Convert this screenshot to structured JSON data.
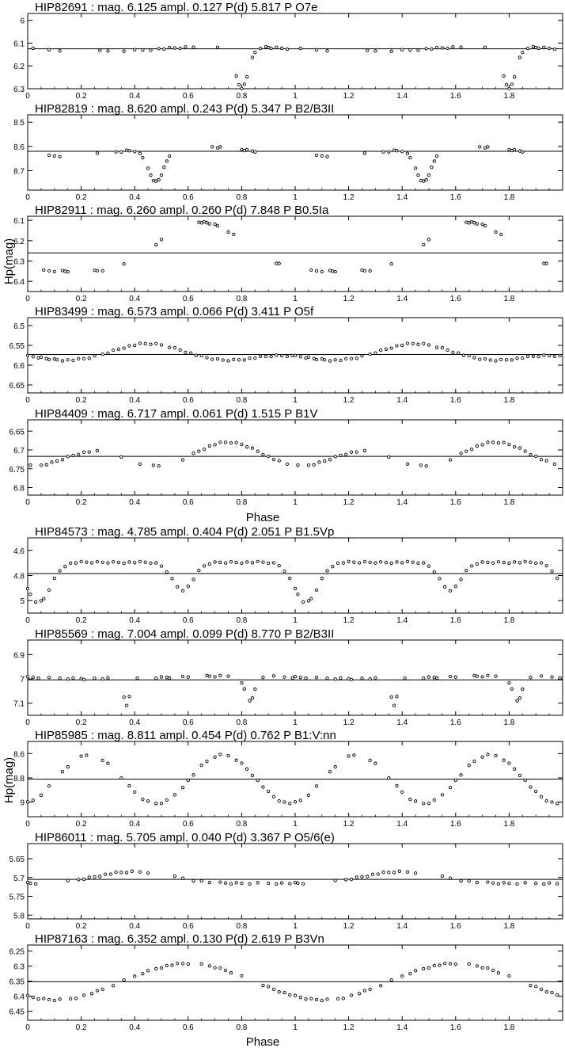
{
  "figure": {
    "ylabel_top": "Hp(mag)",
    "ylabel_bottom": "Hp(mag)",
    "xlabel_upper": "Phase",
    "xlabel_lower": "Phase"
  },
  "chart_data": [
    {
      "type": "scatter",
      "title": "HIP82691 : mag. 6.125 ampl. 0.127 P(d)   5.817 P O7e",
      "xlim": [
        0,
        2
      ],
      "ylim": [
        6.3,
        5.97
      ],
      "xticks": [
        "0",
        "0.2",
        "0.4",
        "0.6",
        "0.8",
        "1",
        "1.2",
        "1.4",
        "1.6",
        "1.8"
      ],
      "yticks": [
        {
          "v": 6,
          "l": "6"
        },
        {
          "v": 6.1,
          "l": "6.1"
        },
        {
          "v": 6.2,
          "l": "6.2"
        },
        {
          "v": 6.3,
          "l": "6.3"
        }
      ],
      "mean": 6.125,
      "curve": {
        "kind": "eclipse",
        "a": 0.01,
        "b": 0.0,
        "phi": 0.0,
        "dips": [
          [
            0.8,
            0.18,
            0.025
          ]
        ]
      },
      "sample_phases": [
        0.02,
        0.08,
        0.12,
        0.27,
        0.3,
        0.36,
        0.4,
        0.43,
        0.46,
        0.49,
        0.51,
        0.53,
        0.55,
        0.57,
        0.59,
        0.62,
        0.71,
        0.78,
        0.79,
        0.8,
        0.81,
        0.82,
        0.84,
        0.85,
        0.87,
        0.89,
        0.9,
        0.91,
        0.93,
        0.95,
        0.97
      ]
    },
    {
      "type": "scatter",
      "title": "HIP82819 : mag. 8.620 ampl. 0.243 P(d)   5.347 P B2/B3II",
      "xlim": [
        0,
        2
      ],
      "ylim": [
        8.78,
        8.47
      ],
      "xticks": [
        "0",
        "0.2",
        "0.4",
        "0.6",
        "0.8",
        "1",
        "1.2",
        "1.4",
        "1.6",
        "1.8"
      ],
      "yticks": [
        {
          "v": 8.5,
          "l": "8.5"
        },
        {
          "v": 8.6,
          "l": "8.6"
        },
        {
          "v": 8.7,
          "l": "8.7"
        }
      ],
      "mean": 8.62,
      "curve": {
        "kind": "eclipse",
        "a": 0.02,
        "b": 0.0,
        "phi": 0.15,
        "dips": [
          [
            0.48,
            0.14,
            0.03
          ]
        ]
      },
      "sample_phases": [
        0.08,
        0.1,
        0.12,
        0.26,
        0.33,
        0.35,
        0.37,
        0.38,
        0.4,
        0.42,
        0.43,
        0.45,
        0.46,
        0.47,
        0.48,
        0.49,
        0.5,
        0.51,
        0.52,
        0.53,
        0.69,
        0.71,
        0.72,
        0.8,
        0.81,
        0.82,
        0.84,
        0.85
      ]
    },
    {
      "type": "scatter",
      "title": "HIP82911 : mag. 6.260 ampl. 0.260 P(d)   7.848 P B0.5Ia",
      "xlim": [
        0,
        2
      ],
      "ylim": [
        6.45,
        6.08
      ],
      "xticks": [
        "0",
        "0.2",
        "0.4",
        "0.6",
        "0.8",
        "1",
        "1.2",
        "1.4",
        "1.6",
        "1.8"
      ],
      "yticks": [
        {
          "v": 6.1,
          "l": "6.1"
        },
        {
          "v": 6.2,
          "l": "6.2"
        },
        {
          "v": 6.3,
          "l": "6.3"
        },
        {
          "v": 6.4,
          "l": "6.4"
        }
      ],
      "mean": 6.26,
      "curve": {
        "kind": "sine",
        "a": 0.12,
        "b": 0.03,
        "phi": 0.1
      },
      "sample_phases": [
        0.06,
        0.08,
        0.1,
        0.13,
        0.14,
        0.15,
        0.25,
        0.26,
        0.28,
        0.36,
        0.48,
        0.5,
        0.64,
        0.65,
        0.66,
        0.67,
        0.68,
        0.7,
        0.71,
        0.75,
        0.77,
        0.93,
        0.94
      ]
    },
    {
      "type": "scatter",
      "title": "HIP83499 : mag. 6.573 ampl. 0.066 P(d)   3.411 P O5f",
      "xlim": [
        0,
        2
      ],
      "ylim": [
        6.67,
        6.48
      ],
      "xticks": [
        "0",
        "0.2",
        "0.4",
        "0.6",
        "0.8",
        "1",
        "1.2",
        "1.4",
        "1.6",
        "1.8"
      ],
      "yticks": [
        {
          "v": 6.5,
          "l": "6.5"
        },
        {
          "v": 6.55,
          "l": "6.55"
        },
        {
          "v": 6.6,
          "l": "6.6"
        },
        {
          "v": 6.65,
          "l": "6.65"
        }
      ],
      "mean": 6.573,
      "curve": {
        "kind": "sine",
        "a": 0.015,
        "b": 0.012,
        "phi": 0.3
      },
      "sample_phases": [
        0.0,
        0.02,
        0.04,
        0.05,
        0.07,
        0.08,
        0.1,
        0.11,
        0.13,
        0.15,
        0.17,
        0.19,
        0.21,
        0.23,
        0.25,
        0.28,
        0.3,
        0.32,
        0.34,
        0.36,
        0.38,
        0.4,
        0.42,
        0.44,
        0.46,
        0.48,
        0.5,
        0.53,
        0.55,
        0.57,
        0.59,
        0.61,
        0.63,
        0.65,
        0.67,
        0.69,
        0.71,
        0.73,
        0.75,
        0.77,
        0.79,
        0.81,
        0.83,
        0.85,
        0.87,
        0.89,
        0.91,
        0.93,
        0.95,
        0.97,
        0.99
      ]
    },
    {
      "type": "scatter",
      "title": "HIP84409 : mag. 6.717 ampl. 0.061 P(d)   1.515 P B1V",
      "xlim": [
        0,
        2
      ],
      "ylim": [
        6.82,
        6.62
      ],
      "xticks": [
        "0",
        "0.2",
        "0.4",
        "0.6",
        "0.8",
        "1",
        "1.2",
        "1.4",
        "1.6",
        "1.8"
      ],
      "yticks": [
        {
          "v": 6.65,
          "l": "6.65"
        },
        {
          "v": 6.7,
          "l": "6.7"
        },
        {
          "v": 6.75,
          "l": "6.75"
        },
        {
          "v": 6.8,
          "l": "6.8"
        }
      ],
      "mean": 6.717,
      "curve": {
        "kind": "sine",
        "a": 0.012,
        "b": 0.025,
        "phi": 0.0
      },
      "sample_phases": [
        0.01,
        0.05,
        0.07,
        0.09,
        0.11,
        0.13,
        0.15,
        0.17,
        0.19,
        0.21,
        0.23,
        0.26,
        0.35,
        0.42,
        0.47,
        0.49,
        0.58,
        0.62,
        0.64,
        0.66,
        0.68,
        0.7,
        0.72,
        0.74,
        0.76,
        0.78,
        0.8,
        0.82,
        0.84,
        0.86,
        0.88,
        0.9,
        0.92,
        0.94,
        0.97
      ]
    },
    {
      "type": "scatter",
      "title": "HIP84573 : mag. 4.785 ampl. 0.404 P(d)   2.051 P B1.5Vp",
      "xlim": [
        0,
        2
      ],
      "ylim": [
        5.1,
        4.5
      ],
      "xticks": [
        "0",
        "0.2",
        "0.4",
        "0.6",
        "0.8",
        "1",
        "1.2",
        "1.4",
        "1.6",
        "1.8"
      ],
      "yticks": [
        {
          "v": 4.6,
          "l": "4.6"
        },
        {
          "v": 4.8,
          "l": "4.8"
        },
        {
          "v": 5,
          "l": "5"
        }
      ],
      "mean": 4.785,
      "curve": {
        "kind": "eclipse",
        "a": 0.0,
        "b": 0.0,
        "phi": 0.0,
        "base": -0.09,
        "dips": [
          [
            0.04,
            0.32,
            0.045
          ],
          [
            0.58,
            0.22,
            0.04
          ]
        ]
      },
      "sample_phases": [
        0.0,
        0.01,
        0.03,
        0.05,
        0.06,
        0.08,
        0.1,
        0.12,
        0.14,
        0.16,
        0.18,
        0.2,
        0.22,
        0.24,
        0.26,
        0.28,
        0.3,
        0.32,
        0.34,
        0.36,
        0.38,
        0.4,
        0.42,
        0.44,
        0.46,
        0.48,
        0.5,
        0.52,
        0.54,
        0.56,
        0.58,
        0.6,
        0.62,
        0.64,
        0.66,
        0.68,
        0.7,
        0.72,
        0.74,
        0.76,
        0.78,
        0.8,
        0.82,
        0.84,
        0.86,
        0.88,
        0.9,
        0.92,
        0.94,
        0.96,
        0.98
      ]
    },
    {
      "type": "scatter",
      "title": "HIP85569 : mag. 7.004 ampl. 0.099 P(d)   8.770 P B2/B3II",
      "xlim": [
        0,
        2
      ],
      "ylim": [
        7.15,
        6.84
      ],
      "xticks": [
        "0",
        "0.2",
        "0.4",
        "0.6",
        "0.8",
        "1",
        "1.2",
        "1.4",
        "1.6",
        "1.8"
      ],
      "yticks": [
        {
          "v": 6.9,
          "l": "6.9"
        },
        {
          "v": 7,
          "l": "7"
        },
        {
          "v": 7.1,
          "l": "7.1"
        }
      ],
      "mean": 7.004,
      "curve": {
        "kind": "eclipse",
        "a": 0.005,
        "b": 0.0,
        "phi": 0.0,
        "base": -0.01,
        "dips": [
          [
            0.37,
            0.11,
            0.012
          ],
          [
            0.83,
            0.1,
            0.018
          ]
        ]
      },
      "sample_phases": [
        0.0,
        0.02,
        0.04,
        0.08,
        0.12,
        0.15,
        0.17,
        0.2,
        0.21,
        0.25,
        0.28,
        0.3,
        0.36,
        0.37,
        0.38,
        0.41,
        0.48,
        0.5,
        0.52,
        0.53,
        0.58,
        0.6,
        0.67,
        0.68,
        0.7,
        0.72,
        0.75,
        0.8,
        0.81,
        0.83,
        0.84,
        0.85,
        0.88,
        0.92,
        0.96,
        0.99
      ]
    },
    {
      "type": "scatter",
      "title": "HIP85985 : mag. 8.811 ampl. 0.454 P(d)   0.762 P B1:V:nn",
      "xlim": [
        0,
        2
      ],
      "ylim": [
        9.12,
        8.5
      ],
      "xticks": [
        "0",
        "0.2",
        "0.4",
        "0.6",
        "0.8",
        "1",
        "1.2",
        "1.4",
        "1.6",
        "1.8"
      ],
      "yticks": [
        {
          "v": 8.6,
          "l": "8.6"
        },
        {
          "v": 8.8,
          "l": "8.8"
        },
        {
          "v": 9,
          "l": "9"
        }
      ],
      "mean": 8.811,
      "curve": {
        "kind": "sine",
        "a": 0.0,
        "b": 0.2,
        "phi": 0.02
      },
      "sample_phases": [
        0.0,
        0.02,
        0.05,
        0.08,
        0.13,
        0.15,
        0.2,
        0.22,
        0.28,
        0.3,
        0.35,
        0.38,
        0.4,
        0.43,
        0.45,
        0.48,
        0.5,
        0.52,
        0.55,
        0.58,
        0.6,
        0.62,
        0.65,
        0.67,
        0.7,
        0.72,
        0.75,
        0.78,
        0.8,
        0.82,
        0.84,
        0.86,
        0.88,
        0.9,
        0.92,
        0.94,
        0.96,
        0.98
      ]
    },
    {
      "type": "scatter",
      "title": "HIP86011 : mag. 5.705 ampl. 0.040 P(d)   3.367 P O5/6(e)",
      "xlim": [
        0,
        2
      ],
      "ylim": [
        5.81,
        5.61
      ],
      "xticks": [
        "0",
        "0.2",
        "0.4",
        "0.6",
        "0.8",
        "1",
        "1.2",
        "1.4",
        "1.6",
        "1.8"
      ],
      "yticks": [
        {
          "v": 5.65,
          "l": "5.65"
        },
        {
          "v": 5.7,
          "l": "5.7"
        },
        {
          "v": 5.75,
          "l": "5.75"
        },
        {
          "v": 5.8,
          "l": "5.8"
        }
      ],
      "mean": 5.705,
      "curve": {
        "kind": "sine",
        "a": 0.015,
        "b": 0.005,
        "phi": 0.35
      },
      "sample_phases": [
        0.0,
        0.01,
        0.03,
        0.15,
        0.19,
        0.21,
        0.23,
        0.25,
        0.27,
        0.29,
        0.31,
        0.33,
        0.35,
        0.37,
        0.39,
        0.42,
        0.45,
        0.55,
        0.58,
        0.62,
        0.65,
        0.68,
        0.72,
        0.74,
        0.76,
        0.78,
        0.8,
        0.83,
        0.86,
        0.9,
        0.93,
        0.95,
        0.98
      ]
    },
    {
      "type": "scatter",
      "title": "HIP87163 : mag. 6.352 ampl. 0.130 P(d)   2.619 P B3Vn",
      "xlim": [
        0,
        2
      ],
      "ylim": [
        6.48,
        6.23
      ],
      "xticks": [
        "0",
        "0.2",
        "0.4",
        "0.6",
        "0.8",
        "1",
        "1.2",
        "1.4",
        "1.6",
        "1.8"
      ],
      "yticks": [
        {
          "v": 6.25,
          "l": "6.25"
        },
        {
          "v": 6.3,
          "l": "6.3"
        },
        {
          "v": 6.35,
          "l": "6.35"
        },
        {
          "v": 6.4,
          "l": "6.4"
        },
        {
          "v": 6.45,
          "l": "6.45"
        }
      ],
      "mean": 6.352,
      "curve": {
        "kind": "sine",
        "a": 0.06,
        "b": 0.0,
        "phi": 0.15
      },
      "sample_phases": [
        0.0,
        0.02,
        0.04,
        0.06,
        0.08,
        0.1,
        0.12,
        0.16,
        0.18,
        0.21,
        0.24,
        0.26,
        0.28,
        0.32,
        0.36,
        0.4,
        0.43,
        0.45,
        0.48,
        0.5,
        0.52,
        0.54,
        0.56,
        0.58,
        0.6,
        0.65,
        0.68,
        0.7,
        0.72,
        0.74,
        0.76,
        0.8,
        0.88,
        0.9,
        0.92,
        0.94,
        0.96,
        0.98
      ]
    }
  ]
}
